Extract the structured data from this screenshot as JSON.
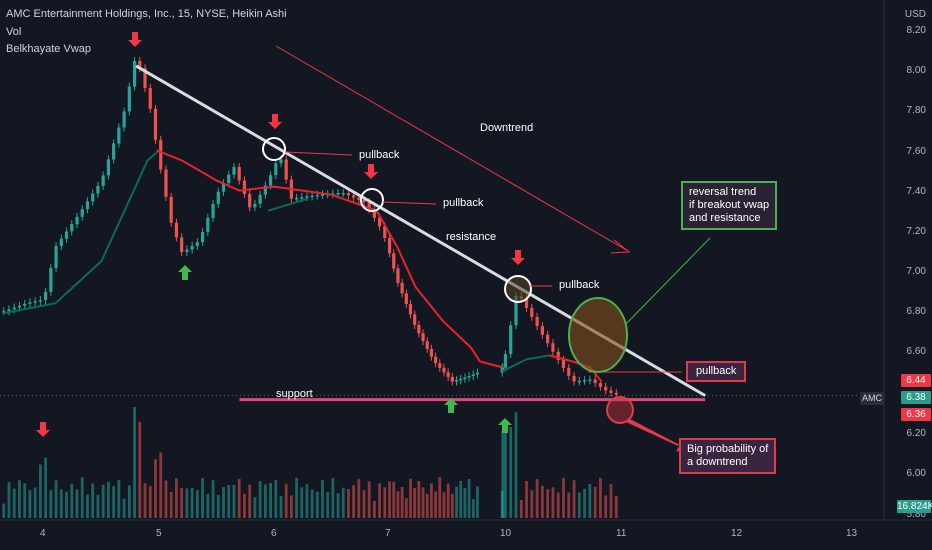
{
  "header": {
    "title": "AMC Entertainment Holdings, Inc., 15, NYSE, Heikin Ashi",
    "indicators": [
      "Vol",
      "Belkhayate Vwap"
    ]
  },
  "price_axis": {
    "currency": "USD",
    "ticks": [
      "8.20",
      "8.00",
      "7.80",
      "7.60",
      "7.40",
      "7.20",
      "7.00",
      "6.80",
      "6.60",
      "6.20",
      "6.00",
      "5.80"
    ],
    "tag_high": "6.44",
    "tag_last": "6.38",
    "tag_low": "6.36",
    "tag_volume": "16.824K",
    "symbol_tag": "AMC"
  },
  "time_axis": {
    "ticks": [
      "4",
      "5",
      "6",
      "7",
      "10",
      "11",
      "12",
      "13"
    ]
  },
  "annotations": {
    "pullback_1": "pullback",
    "pullback_2": "pullback",
    "pullback_3": "pullback",
    "pullback_4": "pullback",
    "downtrend": "Downtrend",
    "resistance": "resistance",
    "support": "support",
    "reversal": [
      "reversal trend",
      "if breakout vwap",
      "and resistance"
    ],
    "probability": [
      "Big probability of",
      "a downtrend"
    ]
  },
  "colors": {
    "background": "#131722",
    "up": "#26a69a",
    "down": "#ef5350",
    "vwap_red": "#e8232c",
    "vwap_green": "#0c6b56",
    "resistance_line": "#d9dbe2",
    "support_line": "#e0487a",
    "arrow_red": "#f23645",
    "arrow_green": "#3fb950",
    "box_green": "#4caf50",
    "box_red": "#e03a4e"
  },
  "chart_data": {
    "type": "candlestick",
    "subtype": "Heikin Ashi",
    "timeframe": "15",
    "ylim": [
      5.8,
      8.25
    ],
    "x_ticks": [
      "4",
      "5",
      "6",
      "7",
      "10",
      "11",
      "12",
      "13"
    ],
    "price_path": [
      {
        "t": 3.65,
        "p": 6.8
      },
      {
        "t": 3.85,
        "p": 6.84
      },
      {
        "t": 4.0,
        "p": 6.86
      },
      {
        "t": 4.1,
        "p": 7.12
      },
      {
        "t": 4.3,
        "p": 7.28
      },
      {
        "t": 4.5,
        "p": 7.45
      },
      {
        "t": 4.7,
        "p": 7.8
      },
      {
        "t": 4.8,
        "p": 8.08
      },
      {
        "t": 4.92,
        "p": 7.82
      },
      {
        "t": 5.0,
        "p": 7.55
      },
      {
        "t": 5.1,
        "p": 7.25
      },
      {
        "t": 5.2,
        "p": 7.09
      },
      {
        "t": 5.35,
        "p": 7.15
      },
      {
        "t": 5.5,
        "p": 7.38
      },
      {
        "t": 5.65,
        "p": 7.52
      },
      {
        "t": 5.8,
        "p": 7.3
      },
      {
        "t": 5.95,
        "p": 7.45
      },
      {
        "t": 6.05,
        "p": 7.58
      },
      {
        "t": 6.15,
        "p": 7.36
      },
      {
        "t": 6.4,
        "p": 7.38
      },
      {
        "t": 6.6,
        "p": 7.39
      },
      {
        "t": 6.8,
        "p": 7.34
      },
      {
        "t": 6.95,
        "p": 7.2
      },
      {
        "t": 7.1,
        "p": 6.95
      },
      {
        "t": 7.3,
        "p": 6.72
      },
      {
        "t": 7.5,
        "p": 6.55
      },
      {
        "t": 7.7,
        "p": 6.45
      },
      {
        "t": 7.9,
        "p": 6.48
      },
      {
        "t": 8.0,
        "p": 6.5
      },
      {
        "t": 10.0,
        "p": 6.52
      },
      {
        "t": 10.12,
        "p": 6.9
      },
      {
        "t": 10.3,
        "p": 6.72
      },
      {
        "t": 10.45,
        "p": 6.58
      },
      {
        "t": 10.6,
        "p": 6.45
      },
      {
        "t": 10.75,
        "p": 6.46
      },
      {
        "t": 10.9,
        "p": 6.4
      },
      {
        "t": 11.0,
        "p": 6.38
      }
    ],
    "vwap_red": [
      {
        "t": 4.98,
        "p": 7.6
      },
      {
        "t": 5.2,
        "p": 7.55
      },
      {
        "t": 5.5,
        "p": 7.45
      },
      {
        "t": 5.7,
        "p": 7.4
      },
      {
        "t": 6.0,
        "p": 7.42
      },
      {
        "t": 6.5,
        "p": 7.38
      },
      {
        "t": 6.9,
        "p": 7.3
      },
      {
        "t": 7.1,
        "p": 7.12
      },
      {
        "t": 7.3,
        "p": 6.92
      },
      {
        "t": 7.6,
        "p": 6.75
      },
      {
        "t": 7.9,
        "p": 6.62
      },
      {
        "t": 8.0,
        "p": 6.55
      },
      {
        "t": 10.0,
        "p": 6.52
      }
    ],
    "vwap_green": [
      {
        "t": 3.65,
        "p": 6.79
      },
      {
        "t": 4.1,
        "p": 6.84
      },
      {
        "t": 4.5,
        "p": 7.05
      },
      {
        "t": 4.9,
        "p": 7.55
      },
      {
        "t": 5.0,
        "p": 7.6
      }
    ],
    "vwap_segments": [
      {
        "color": "green",
        "points": [
          {
            "t": 5.95,
            "p": 7.3
          },
          {
            "t": 6.3,
            "p": 7.36
          }
        ]
      },
      {
        "color": "green",
        "points": [
          {
            "t": 9.92,
            "p": 6.5
          },
          {
            "t": 10.2,
            "p": 6.56
          },
          {
            "t": 10.4,
            "p": 6.58
          }
        ]
      },
      {
        "color": "red",
        "points": [
          {
            "t": 10.4,
            "p": 6.58
          },
          {
            "t": 10.6,
            "p": 6.55
          },
          {
            "t": 10.75,
            "p": 6.52
          },
          {
            "t": 10.85,
            "p": 6.45
          }
        ]
      }
    ],
    "resistance": [
      {
        "t": 4.8,
        "p": 8.02
      },
      {
        "t": 11.75,
        "p": 6.38
      }
    ],
    "support": {
      "price": 6.36,
      "t_start": 5.7,
      "t_end": 11.75
    },
    "volume_peaks": [
      {
        "t": 4.0,
        "v": 0.55
      },
      {
        "t": 4.8,
        "v": 1.0
      },
      {
        "t": 5.0,
        "v": 0.6
      },
      {
        "t": 6.0,
        "v": 0.35
      },
      {
        "t": 10.0,
        "v": 0.85
      },
      {
        "t": 10.1,
        "v": 0.95
      }
    ],
    "last_price": 6.38,
    "last_volume": "16.824K"
  }
}
